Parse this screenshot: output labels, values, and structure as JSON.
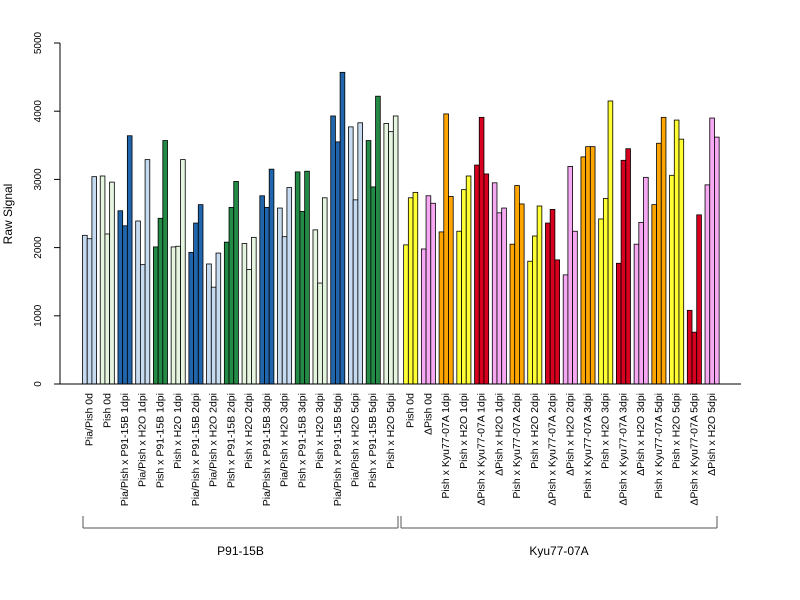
{
  "chart_data": {
    "type": "bar",
    "title": "",
    "xlabel": "",
    "ylabel": "Raw Signal",
    "ylim": [
      0,
      5000
    ],
    "yticks": [
      0,
      1000,
      2000,
      3000,
      4000,
      5000
    ],
    "grid": false,
    "bars_per_category": 3,
    "categories": [
      "Pia/Pish 0d",
      "Pish 0d",
      "Pia/Pish x P91-15B 1dpi",
      "Pia/Pish x H2O 1dpi",
      "Pish x P91-15B 1dpi",
      "Pish x H2O 1dpi",
      "Pia/Pish x P91-15B 2dpi",
      "Pia/Pish x H2O 2dpi",
      "Pish x P91-15B 2dpi",
      "Pish x H2O 2dpi",
      "Pia/Pish x P91-15B 3dpi",
      "Pia/Pish x H2O 3dpi",
      "Pish x P91-15B 3dpi",
      "Pish x H2O 3dpi",
      "Pia/Pish x P91-15B 5dpi",
      "Pia/Pish x H2O 5dpi",
      "Pish x P91-15B 5dpi",
      "Pish x H2O 5dpi",
      "Pish 0d",
      "ΔPish 0d",
      "Pish x Kyu77-07A 1dpi",
      "Pish x H2O 1dpi",
      "ΔPish x Kyu77-07A 1dpi",
      "ΔPish x H2O 1dpi",
      "Pish x Kyu77-07A 2dpi",
      "Pish x H2O 2dpi",
      "ΔPish x Kyu77-07A 2dpi",
      "ΔPish x H2O 2dpi",
      "Pish x Kyu77-07A 3dpi",
      "Pish x H2O 3dpi",
      "ΔPish x Kyu77-07A 3dpi",
      "ΔPish x H2O 3dpi",
      "Pish x Kyu77-07A 5dpi",
      "Pish x H2O 5dpi",
      "ΔPish x Kyu77-07A 5dpi",
      "ΔPish x H2O 5dpi"
    ],
    "colors": [
      "#c6dbef",
      "#e5f5e0",
      "#2166ac",
      "#c6dbef",
      "#238b45",
      "#e5f5e0",
      "#2166ac",
      "#c6dbef",
      "#238b45",
      "#e5f5e0",
      "#2166ac",
      "#c6dbef",
      "#238b45",
      "#e5f5e0",
      "#2166ac",
      "#c6dbef",
      "#238b45",
      "#e5f5e0",
      "#ffff33",
      "#f7a8f3",
      "#ffa500",
      "#ffff33",
      "#d7001f",
      "#f7a8f3",
      "#ffa500",
      "#ffff33",
      "#d7001f",
      "#f7a8f3",
      "#ffa500",
      "#ffff33",
      "#d7001f",
      "#f7a8f3",
      "#ffa500",
      "#ffff33",
      "#d7001f",
      "#f7a8f3"
    ],
    "values": [
      [
        2180,
        2130,
        3040
      ],
      [
        3050,
        2200,
        2960
      ],
      [
        2540,
        2320,
        3640
      ],
      [
        2390,
        1750,
        3290
      ],
      [
        2010,
        2430,
        3570
      ],
      [
        2010,
        2020,
        3290
      ],
      [
        1930,
        2360,
        2630
      ],
      [
        1760,
        1420,
        1920
      ],
      [
        2080,
        2590,
        2970
      ],
      [
        2060,
        1680,
        2150
      ],
      [
        2760,
        2590,
        3150
      ],
      [
        2580,
        2160,
        2880
      ],
      [
        3110,
        2530,
        3120
      ],
      [
        2260,
        1480,
        2730
      ],
      [
        3930,
        3550,
        4570
      ],
      [
        3770,
        2700,
        3830
      ],
      [
        3570,
        2890,
        4220
      ],
      [
        3820,
        3700,
        3930
      ],
      [
        2040,
        2730,
        2810
      ],
      [
        1980,
        2760,
        2650
      ],
      [
        2230,
        3960,
        2750
      ],
      [
        2240,
        2850,
        3050
      ],
      [
        3210,
        3910,
        3080
      ],
      [
        2950,
        2510,
        2580
      ],
      [
        2050,
        2910,
        2640
      ],
      [
        1800,
        2170,
        2610
      ],
      [
        2360,
        2560,
        1820
      ],
      [
        1600,
        3190,
        2240
      ],
      [
        3330,
        3480,
        3480
      ],
      [
        2420,
        2720,
        4150
      ],
      [
        1770,
        3280,
        3450
      ],
      [
        2050,
        2370,
        3030
      ],
      [
        2630,
        3530,
        3910
      ],
      [
        3060,
        3870,
        3590
      ],
      [
        1080,
        760,
        2480
      ],
      [
        2920,
        3900,
        3620
      ]
    ],
    "groups": [
      {
        "label": "P91-15B",
        "first_category": 0,
        "last_category": 17
      },
      {
        "label": "Kyu77-07A",
        "first_category": 18,
        "last_category": 35
      }
    ]
  }
}
